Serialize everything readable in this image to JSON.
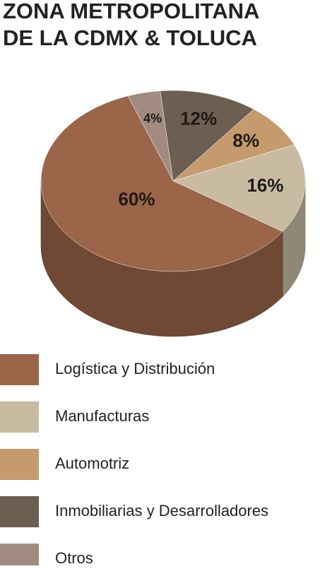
{
  "chart_data": {
    "type": "pie",
    "title": [
      "ZONA METROPOLITANA",
      "DE LA CDMX & TOLUCA"
    ],
    "categories": [
      "Logística y Distribución",
      "Manufacturas",
      "Automotriz",
      "Inmobiliarias y Desarrolladores",
      "Otros"
    ],
    "values": [
      60,
      16,
      8,
      12,
      4
    ],
    "value_labels": [
      "60%",
      "16%",
      "8%",
      "12%",
      "4%"
    ],
    "colors": [
      "#9a6549",
      "#c8bba2",
      "#c59a6c",
      "#6c5e50",
      "#a18b80"
    ]
  }
}
